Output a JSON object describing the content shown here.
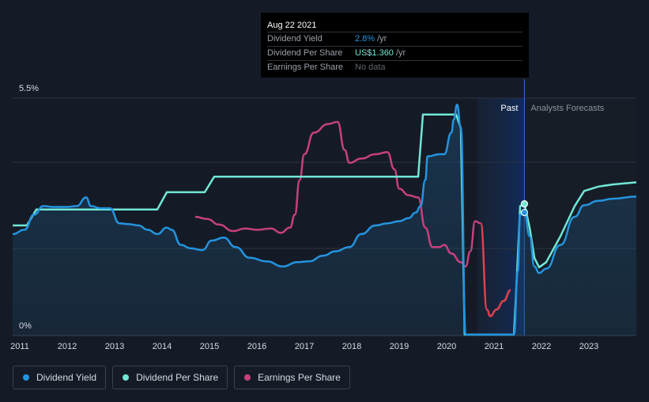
{
  "tooltip": {
    "date": "Aug 22 2021",
    "rows": [
      {
        "label": "Dividend Yield",
        "value": "2.8%",
        "unit": "/yr",
        "color": "#2394df"
      },
      {
        "label": "Dividend Per Share",
        "value": "US$1.360",
        "unit": "/yr",
        "color": "#71e7d6"
      },
      {
        "label": "Earnings Per Share",
        "value": "No data",
        "unit": "",
        "color": "#5f6670"
      }
    ]
  },
  "legend": [
    {
      "label": "Dividend Yield",
      "color": "#2394df"
    },
    {
      "label": "Dividend Per Share",
      "color": "#71e7d6"
    },
    {
      "label": "Earnings Per Share",
      "color": "#c7407f"
    }
  ],
  "chart_data": {
    "type": "line",
    "y_top_label": "5.5%",
    "y_bottom_label": "0%",
    "ylim": [
      0,
      5.5
    ],
    "xlim": [
      2010.85,
      2024.0
    ],
    "x_ticks": [
      "2011",
      "2012",
      "2013",
      "2014",
      "2015",
      "2016",
      "2017",
      "2018",
      "2019",
      "2020",
      "2021",
      "2022",
      "2023"
    ],
    "regions": {
      "past_label": "Past",
      "forecast_label": "Analysts Forecasts",
      "past_start": 2020.65,
      "divider": 2021.64
    },
    "colors": {
      "dividend_yield": "#2394df",
      "dividend_per_share": "#71e7d6",
      "earnings_per_share": "#c7407f",
      "earnings_negative": "#e0414f"
    },
    "series": [
      {
        "name": "Dividend Yield",
        "key": "dividend_yield",
        "points": [
          [
            2010.85,
            2.35
          ],
          [
            2011.1,
            2.45
          ],
          [
            2011.3,
            2.8
          ],
          [
            2011.5,
            3.0
          ],
          [
            2011.7,
            2.98
          ],
          [
            2012.0,
            2.98
          ],
          [
            2012.2,
            3.0
          ],
          [
            2012.4,
            3.2
          ],
          [
            2012.5,
            3.0
          ],
          [
            2012.7,
            2.95
          ],
          [
            2012.9,
            2.95
          ],
          [
            2013.1,
            2.6
          ],
          [
            2013.3,
            2.58
          ],
          [
            2013.5,
            2.55
          ],
          [
            2013.7,
            2.45
          ],
          [
            2013.9,
            2.35
          ],
          [
            2014.1,
            2.5
          ],
          [
            2014.2,
            2.45
          ],
          [
            2014.4,
            2.1
          ],
          [
            2014.6,
            2.02
          ],
          [
            2014.85,
            1.98
          ],
          [
            2015.05,
            2.2
          ],
          [
            2015.3,
            2.27
          ],
          [
            2015.55,
            2.05
          ],
          [
            2015.85,
            1.8
          ],
          [
            2016.2,
            1.72
          ],
          [
            2016.55,
            1.6
          ],
          [
            2016.85,
            1.7
          ],
          [
            2017.1,
            1.72
          ],
          [
            2017.4,
            1.85
          ],
          [
            2017.65,
            1.95
          ],
          [
            2017.95,
            2.05
          ],
          [
            2018.2,
            2.35
          ],
          [
            2018.5,
            2.55
          ],
          [
            2018.75,
            2.6
          ],
          [
            2019.0,
            2.65
          ],
          [
            2019.2,
            2.72
          ],
          [
            2019.35,
            2.85
          ],
          [
            2019.45,
            3.0
          ],
          [
            2019.55,
            3.6
          ],
          [
            2019.6,
            4.15
          ],
          [
            2019.85,
            4.2
          ],
          [
            2019.95,
            4.2
          ],
          [
            2020.1,
            4.7
          ],
          [
            2020.15,
            5.0
          ],
          [
            2020.22,
            5.35
          ],
          [
            2020.3,
            4.8
          ],
          [
            2020.4,
            0.02
          ],
          [
            2021.32,
            0.02
          ],
          [
            2021.42,
            0.02
          ],
          [
            2021.5,
            1.5
          ],
          [
            2021.55,
            2.8
          ],
          [
            2021.64,
            2.85
          ],
          [
            2021.75,
            2.3
          ],
          [
            2021.85,
            1.6
          ],
          [
            2021.95,
            1.45
          ],
          [
            2022.1,
            1.55
          ],
          [
            2022.4,
            2.1
          ],
          [
            2022.7,
            2.75
          ],
          [
            2022.9,
            3.02
          ],
          [
            2023.2,
            3.12
          ],
          [
            2023.5,
            3.17
          ],
          [
            2024.0,
            3.22
          ]
        ]
      },
      {
        "name": "Dividend Per Share",
        "key": "dividend_per_share",
        "points": [
          [
            2010.85,
            2.55
          ],
          [
            2011.15,
            2.55
          ],
          [
            2011.35,
            2.92
          ],
          [
            2012.9,
            2.92
          ],
          [
            2013.9,
            2.92
          ],
          [
            2014.1,
            3.32
          ],
          [
            2014.9,
            3.32
          ],
          [
            2015.1,
            3.68
          ],
          [
            2019.4,
            3.68
          ],
          [
            2019.5,
            5.12
          ],
          [
            2020.2,
            5.12
          ],
          [
            2020.3,
            4.8
          ],
          [
            2020.38,
            0.02
          ],
          [
            2021.32,
            0.02
          ],
          [
            2021.42,
            0.02
          ],
          [
            2021.5,
            1.8
          ],
          [
            2021.55,
            3.0
          ],
          [
            2021.64,
            3.05
          ],
          [
            2021.75,
            2.5
          ],
          [
            2021.85,
            1.8
          ],
          [
            2021.95,
            1.58
          ],
          [
            2022.1,
            1.7
          ],
          [
            2022.4,
            2.3
          ],
          [
            2022.7,
            3.0
          ],
          [
            2022.9,
            3.35
          ],
          [
            2023.2,
            3.45
          ],
          [
            2023.5,
            3.5
          ],
          [
            2024.0,
            3.55
          ]
        ]
      },
      {
        "name": "Earnings Per Share",
        "key": "earnings_per_share",
        "points": [
          [
            2014.7,
            2.75
          ],
          [
            2014.95,
            2.7
          ],
          [
            2015.2,
            2.57
          ],
          [
            2015.5,
            2.42
          ],
          [
            2015.75,
            2.48
          ],
          [
            2016.0,
            2.45
          ],
          [
            2016.3,
            2.48
          ],
          [
            2016.5,
            2.38
          ],
          [
            2016.7,
            2.5
          ],
          [
            2016.8,
            2.8
          ],
          [
            2016.9,
            3.6
          ],
          [
            2017.0,
            4.2
          ],
          [
            2017.2,
            4.7
          ],
          [
            2017.5,
            4.9
          ],
          [
            2017.7,
            4.95
          ],
          [
            2017.85,
            4.3
          ],
          [
            2017.95,
            4.0
          ],
          [
            2018.2,
            4.1
          ],
          [
            2018.5,
            4.2
          ],
          [
            2018.75,
            4.25
          ],
          [
            2018.9,
            3.85
          ],
          [
            2019.0,
            3.4
          ],
          [
            2019.2,
            3.25
          ],
          [
            2019.4,
            3.2
          ],
          [
            2019.55,
            2.5
          ],
          [
            2019.7,
            2.05
          ],
          [
            2019.85,
            2.05
          ],
          [
            2019.95,
            2.1
          ],
          [
            2020.1,
            1.9
          ],
          [
            2020.3,
            1.7
          ],
          [
            2020.4,
            1.6
          ],
          [
            2020.5,
            1.95
          ],
          [
            2020.6,
            2.65
          ],
          [
            2020.72,
            2.6
          ],
          [
            2020.85,
            0.6
          ],
          [
            2020.92,
            0.45
          ],
          [
            2021.05,
            0.6
          ],
          [
            2021.2,
            0.8
          ],
          [
            2021.35,
            1.05
          ]
        ]
      }
    ],
    "markers": [
      {
        "series": "dividend_per_share",
        "x": 2021.64,
        "y": 3.05
      },
      {
        "series": "dividend_yield",
        "x": 2021.64,
        "y": 2.85
      }
    ]
  }
}
